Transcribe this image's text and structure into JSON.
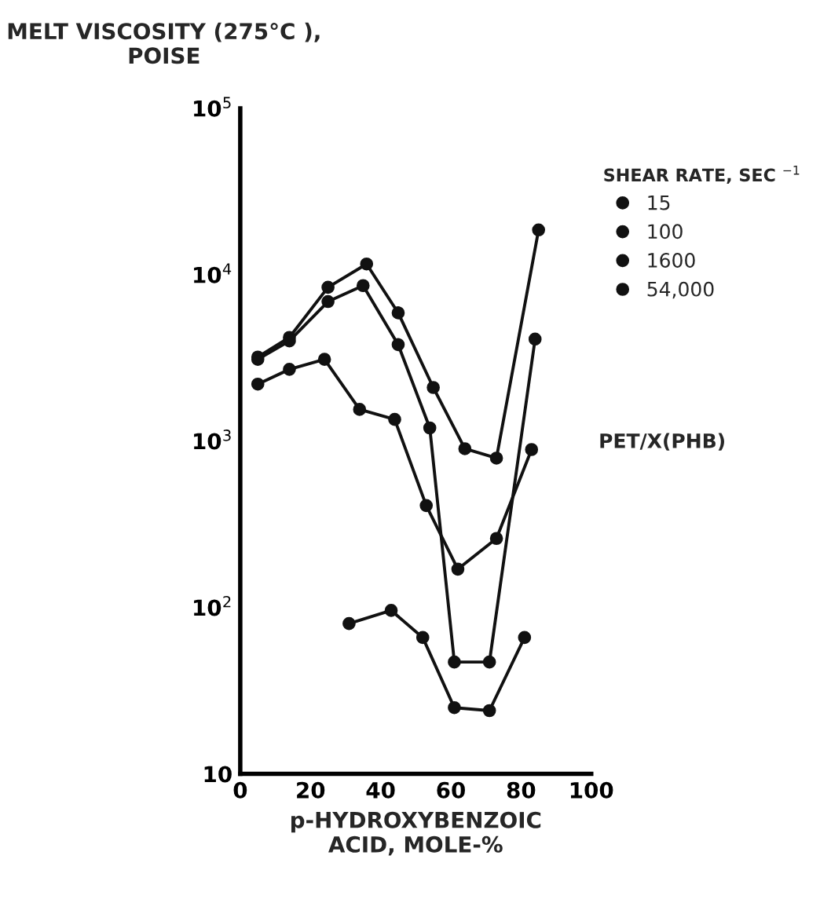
{
  "chart_data": {
    "type": "line",
    "ylabel": "MELT VISCOSITY (275°C ),\nPOISE",
    "xlabel": "p-HYDROXYBENZOIC\nACID, MOLE-%",
    "legend_title": "SHEAR RATE, SEC $^{−1}$",
    "annotations": [
      "PET/X(PHB)"
    ],
    "log": "y",
    "xlim": [
      0,
      100
    ],
    "xticks": [
      0,
      20,
      40,
      60,
      80,
      100
    ],
    "ylim": [
      10,
      100000
    ],
    "yticks": [
      10,
      {
        "value": 100,
        "label": "10$^{2}$"
      },
      {
        "value": 1000,
        "label": "10$^{3}$"
      },
      {
        "value": 10000,
        "label": "10$^{4}$"
      },
      {
        "value": 100000,
        "label": "10$^{5}$"
      }
    ],
    "grid": false,
    "legend": "top right",
    "marker": "circle",
    "line_style": "solid",
    "series": [
      {
        "name": "15",
        "color": "#111111",
        "x": [
          5,
          14,
          25,
          36,
          45,
          55,
          64,
          73,
          85
        ],
        "values": [
          3200,
          4200,
          8400,
          11600,
          5900,
          2100,
          900,
          790,
          18600
        ]
      },
      {
        "name": "100",
        "color": "#111111",
        "x": [
          5,
          14,
          25,
          35,
          45,
          54,
          61,
          71,
          84
        ],
        "values": [
          3100,
          4000,
          6900,
          8600,
          3800,
          1200,
          47,
          47,
          4100
        ]
      },
      {
        "name": "1600",
        "color": "#111111",
        "x": [
          5,
          14,
          24,
          34,
          44,
          53,
          62,
          73,
          83
        ],
        "values": [
          2200,
          2700,
          3100,
          1550,
          1350,
          410,
          170,
          260,
          890
        ]
      },
      {
        "name": "54,000",
        "color": "#111111",
        "x": [
          31,
          43,
          52,
          61,
          71,
          81
        ],
        "values": [
          80,
          96,
          66,
          25,
          24,
          66
        ]
      }
    ]
  }
}
